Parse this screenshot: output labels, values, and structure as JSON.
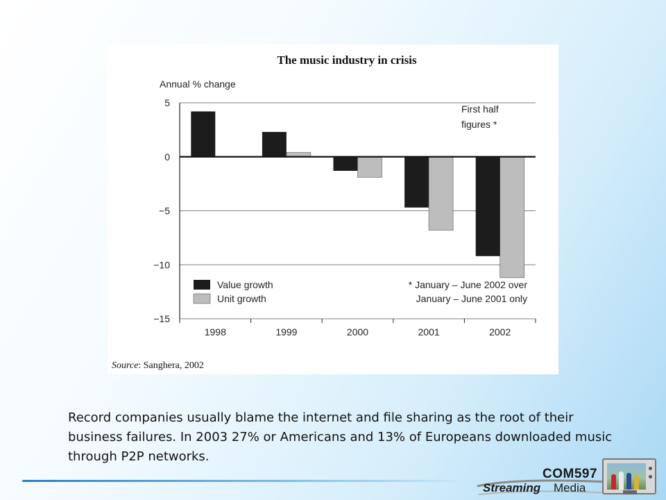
{
  "slide": {
    "caption": "Record companies usually blame the internet and file sharing as the root of their business failures. In 2003 27% or Americans and 13% of Europeans downloaded music through P2P networks.",
    "logo": {
      "course": "COM597",
      "word1": "Streaming",
      "word2": "Media"
    }
  },
  "chart_data": {
    "type": "bar",
    "title": "The music industry in crisis",
    "ylabel": "Annual % change",
    "xlabel": "",
    "categories": [
      "1998",
      "1999",
      "2000",
      "2001",
      "2002"
    ],
    "series": [
      {
        "name": "Value growth",
        "color": "#1c1c1c",
        "values": [
          4.2,
          2.3,
          -1.3,
          -4.7,
          -9.2
        ]
      },
      {
        "name": "Unit growth",
        "color": "#bdbdbd",
        "values": [
          null,
          0.4,
          -1.9,
          -6.8,
          -11.2
        ]
      }
    ],
    "ylim": [
      -15,
      5
    ],
    "yticks": [
      5,
      0,
      -5,
      -10,
      -15
    ],
    "ytick_labels": [
      "5",
      "0",
      "−5",
      "−10",
      "−15"
    ],
    "grid": true,
    "legend_position": "bottom-left",
    "annotations": {
      "first_half_line1": "First half",
      "first_half_line2": "figures *",
      "footnote_line1": "* January – June 2002 over",
      "footnote_line2": "January – June 2001 only"
    },
    "source_label": "Source",
    "source_text": ": Sanghera, 2002"
  }
}
